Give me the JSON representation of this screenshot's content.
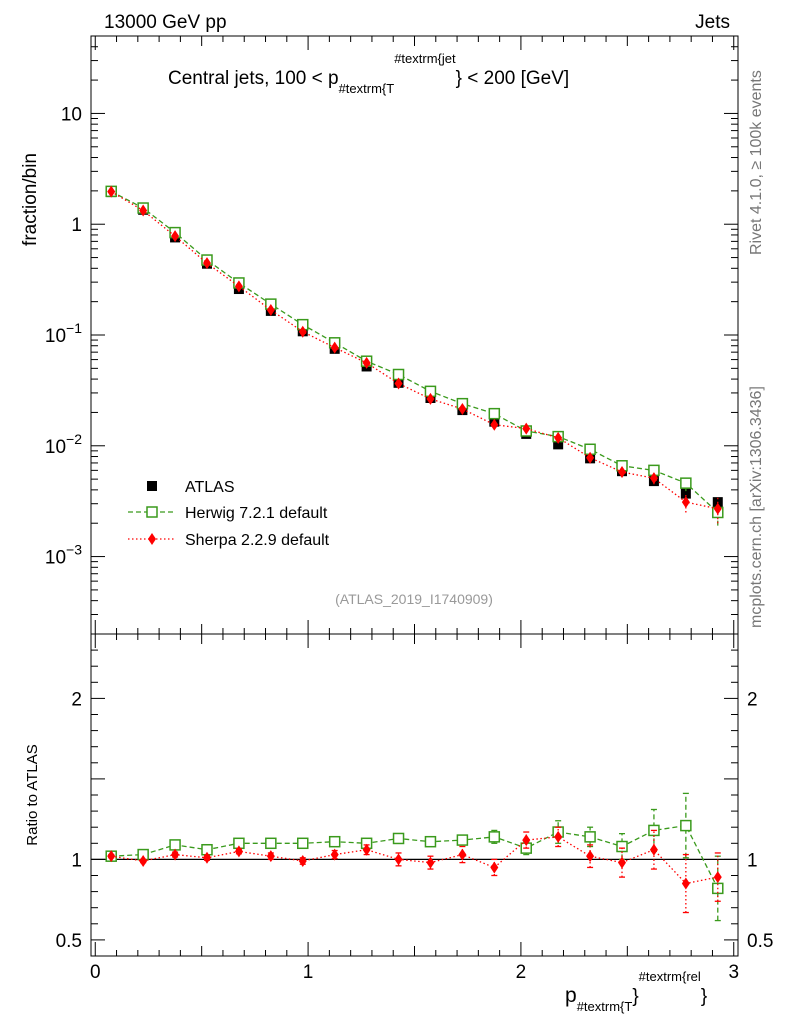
{
  "header": {
    "left_title": "13000 GeV pp",
    "right_title": "Jets"
  },
  "side_texts": {
    "rivet": "Rivet 4.1.0, ≥ 100k events",
    "mcplots": "mcplots.cern.ch [arXiv:1306.3436]"
  },
  "colors": {
    "atlas": "#000000",
    "herwig": "#3a9a1c",
    "sherpa": "#ff0000",
    "watermark": "#999999"
  },
  "chart_data": [
    {
      "type": "scatter",
      "panel": "main",
      "title": {
        "pre": "Central jets, 100 < p",
        "sub": "#textrm{T",
        "sup": "#textrm{jet",
        "post": "} < 200 [GeV]"
      },
      "ylabel": "fraction/bin",
      "yscale": "log",
      "ylim": [
        0.0002,
        50
      ],
      "xlim": [
        -0.02,
        3.02
      ],
      "y_ticks": [
        {
          "value": 10,
          "label": "10"
        },
        {
          "value": 1,
          "label": "1"
        },
        {
          "value": 0.1,
          "base": "10",
          "exp": "−1"
        },
        {
          "value": 0.01,
          "base": "10",
          "exp": "−2"
        },
        {
          "value": 0.001,
          "base": "10",
          "exp": "−3"
        }
      ],
      "watermark": "(ATLAS_2019_I1740909)",
      "legend": {
        "position": "lower-left",
        "entries": [
          "ATLAS",
          "Herwig 7.2.1 default",
          "Sherpa 2.2.9 default"
        ]
      },
      "x": [
        0.075,
        0.225,
        0.375,
        0.525,
        0.675,
        0.825,
        0.975,
        1.125,
        1.275,
        1.425,
        1.575,
        1.725,
        1.875,
        2.025,
        2.175,
        2.325,
        2.475,
        2.625,
        2.775,
        2.925
      ],
      "series": [
        {
          "name": "ATLAS",
          "key": "atlas",
          "marker": "square",
          "values": [
            1.95,
            1.35,
            0.76,
            0.44,
            0.26,
            0.165,
            0.108,
            0.075,
            0.052,
            0.037,
            0.027,
            0.021,
            0.0165,
            0.0128,
            0.0103,
            0.0077,
            0.0059,
            0.0048,
            0.0037,
            0.0031
          ]
        },
        {
          "name": "Herwig 7.2.1 default",
          "key": "herwig",
          "marker": "open-square",
          "values": [
            1.98,
            1.4,
            0.84,
            0.475,
            0.295,
            0.19,
            0.124,
            0.085,
            0.058,
            0.044,
            0.031,
            0.024,
            0.0195,
            0.0136,
            0.0121,
            0.0093,
            0.0066,
            0.006,
            0.0046,
            0.0025
          ],
          "err": [
            0.02,
            0.015,
            0.01,
            0.005,
            0.004,
            0.003,
            0.002,
            0.0015,
            0.001,
            0.0008,
            0.0006,
            0.0005,
            0.0006,
            0.0005,
            0.0005,
            0.0004,
            0.0005,
            0.0006,
            0.0007,
            0.0006
          ]
        },
        {
          "name": "Sherpa 2.2.9 default",
          "key": "sherpa",
          "marker": "diamond",
          "values": [
            1.97,
            1.33,
            0.78,
            0.445,
            0.275,
            0.168,
            0.107,
            0.077,
            0.056,
            0.0365,
            0.0265,
            0.0215,
            0.0155,
            0.0143,
            0.0118,
            0.0078,
            0.0058,
            0.0051,
            0.0031,
            0.0027
          ],
          "err": [
            0.02,
            0.015,
            0.01,
            0.005,
            0.004,
            0.003,
            0.002,
            0.0015,
            0.0012,
            0.001,
            0.0009,
            0.0008,
            0.0008,
            0.0007,
            0.0008,
            0.0006,
            0.0006,
            0.0006,
            0.0006,
            0.0007
          ]
        }
      ]
    },
    {
      "type": "scatter",
      "panel": "ratio",
      "ylabel": "Ratio to ATLAS",
      "xlabel": {
        "base": "p",
        "sub": "#textrm{T",
        "mid": "}",
        "sup": "#textrm{rel",
        "post": "}"
      },
      "ylim": [
        0.4,
        2.4
      ],
      "xlim": [
        -0.02,
        3.02
      ],
      "y_ticks": [
        {
          "value": 2,
          "label": "2"
        },
        {
          "value": 1,
          "label": "1"
        },
        {
          "value": 0.5,
          "label": "0.5"
        }
      ],
      "x_ticks": [
        {
          "value": 0,
          "label": "0"
        },
        {
          "value": 1,
          "label": "1"
        },
        {
          "value": 2,
          "label": "2"
        },
        {
          "value": 3,
          "label": "3"
        }
      ],
      "reference_line": 1.0,
      "x": [
        0.075,
        0.225,
        0.375,
        0.525,
        0.675,
        0.825,
        0.975,
        1.125,
        1.275,
        1.425,
        1.575,
        1.725,
        1.875,
        2.025,
        2.175,
        2.325,
        2.475,
        2.625,
        2.775,
        2.925
      ],
      "series": [
        {
          "name": "Herwig 7.2.1 default",
          "key": "herwig",
          "marker": "open-square",
          "values": [
            1.02,
            1.03,
            1.09,
            1.06,
            1.1,
            1.1,
            1.1,
            1.11,
            1.1,
            1.13,
            1.11,
            1.12,
            1.14,
            1.07,
            1.17,
            1.14,
            1.08,
            1.18,
            1.21,
            0.82
          ],
          "err": [
            0.01,
            0.01,
            0.015,
            0.015,
            0.015,
            0.015,
            0.02,
            0.02,
            0.02,
            0.03,
            0.025,
            0.03,
            0.04,
            0.04,
            0.07,
            0.06,
            0.08,
            0.13,
            0.2,
            0.2
          ]
        },
        {
          "name": "Sherpa 2.2.9 default",
          "key": "sherpa",
          "marker": "diamond",
          "values": [
            1.02,
            0.99,
            1.03,
            1.01,
            1.05,
            1.02,
            0.99,
            1.03,
            1.06,
            1.0,
            0.98,
            1.03,
            0.95,
            1.12,
            1.14,
            1.02,
            0.98,
            1.06,
            0.85,
            0.89
          ],
          "err": [
            0.01,
            0.01,
            0.015,
            0.015,
            0.015,
            0.02,
            0.02,
            0.025,
            0.03,
            0.04,
            0.04,
            0.05,
            0.05,
            0.05,
            0.06,
            0.07,
            0.09,
            0.12,
            0.18,
            0.15
          ]
        }
      ]
    }
  ]
}
